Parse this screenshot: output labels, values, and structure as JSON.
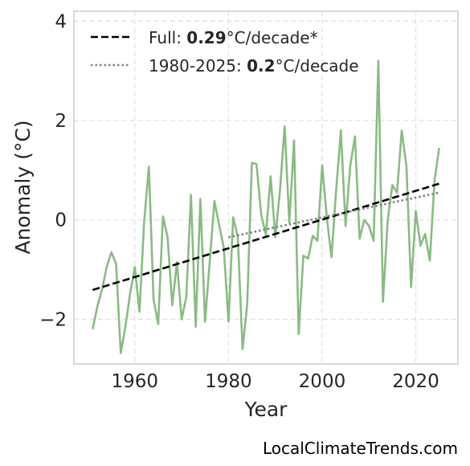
{
  "chart_data": {
    "type": "line",
    "xlabel": "Year",
    "ylabel": "Anomaly (°C)",
    "xlim": [
      1947,
      2029
    ],
    "ylim": [
      -2.9,
      4.2
    ],
    "xticks": [
      1960,
      1980,
      2000,
      2020
    ],
    "yticks": [
      4,
      2,
      0,
      -2
    ],
    "ytick_labels": [
      "4",
      "2",
      "0",
      "−2"
    ],
    "grid": true,
    "legend_position": "top-left",
    "series": [
      {
        "type": "line",
        "color": "#8aba84",
        "x": [
          1951,
          1952,
          1953,
          1954,
          1955,
          1956,
          1957,
          1958,
          1959,
          1960,
          1961,
          1962,
          1963,
          1964,
          1965,
          1966,
          1967,
          1968,
          1969,
          1970,
          1971,
          1972,
          1973,
          1974,
          1975,
          1976,
          1977,
          1978,
          1979,
          1980,
          1981,
          1982,
          1983,
          1984,
          1985,
          1986,
          1987,
          1988,
          1989,
          1990,
          1991,
          1992,
          1993,
          1994,
          1995,
          1996,
          1997,
          1998,
          1999,
          2000,
          2001,
          2002,
          2003,
          2004,
          2005,
          2006,
          2007,
          2008,
          2009,
          2010,
          2011,
          2012,
          2013,
          2014,
          2015,
          2016,
          2017,
          2018,
          2019,
          2020,
          2021,
          2022,
          2023,
          2024,
          2025
        ],
        "y": [
          -2.2,
          -1.75,
          -1.4,
          -0.95,
          -0.65,
          -0.88,
          -2.68,
          -2.15,
          -1.48,
          -0.95,
          -1.85,
          -0.05,
          1.07,
          -1.6,
          -2.1,
          0.07,
          -0.35,
          -1.72,
          -0.85,
          -2.0,
          -1.55,
          0.5,
          -2.15,
          0.42,
          -2.05,
          -0.85,
          0.38,
          -0.1,
          -0.55,
          -2.05,
          0.05,
          -0.35,
          -2.6,
          -1.7,
          1.15,
          1.12,
          0.1,
          -0.3,
          0.88,
          -0.35,
          0.6,
          1.88,
          -0.05,
          1.6,
          -2.3,
          -0.72,
          -0.78,
          -0.32,
          -0.42,
          1.1,
          0.05,
          -0.75,
          0.6,
          1.8,
          -0.12,
          1.08,
          1.68,
          -0.38,
          0.0,
          -0.12,
          -0.42,
          3.2,
          -1.65,
          0.0,
          0.7,
          0.55,
          1.8,
          1.08,
          -1.35,
          0.18,
          -0.52,
          -0.28,
          -0.82,
          0.8,
          1.45
        ]
      },
      {
        "type": "trend",
        "style": "dashed",
        "color": "#000000",
        "x": [
          1951,
          2025
        ],
        "y": [
          -1.41,
          0.73
        ]
      },
      {
        "type": "trend",
        "style": "dotted",
        "color": "#808080",
        "x": [
          1980,
          2025
        ],
        "y": [
          -0.35,
          0.55
        ]
      }
    ],
    "legend": [
      {
        "prefix": "Full: ",
        "value": "0.29",
        "suffix": "°C/decade*",
        "style": "dashed",
        "color": "#000000"
      },
      {
        "prefix": "1980-2025: ",
        "value": "0.2",
        "suffix": "°C/decade",
        "style": "dotted",
        "color": "#808080"
      }
    ]
  },
  "watermark": "LocalClimateTrends.com"
}
